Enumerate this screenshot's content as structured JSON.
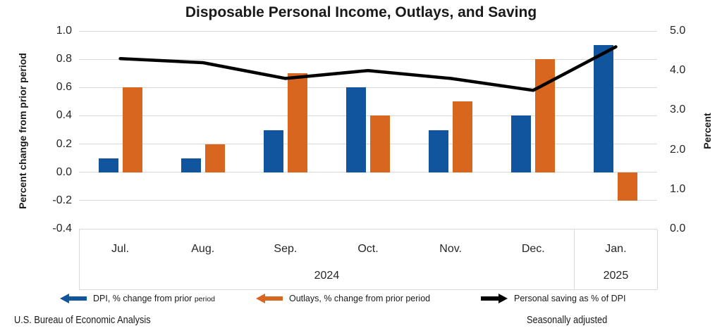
{
  "title": "Disposable Personal Income, Outlays, and Saving",
  "footer": {
    "left": "U.S. Bureau of Economic Analysis",
    "right": "Seasonally adjusted"
  },
  "legend": [
    {
      "label": "DPI, % change from prior",
      "label_small": "period",
      "icon": "left-arrow",
      "color": "#11559F"
    },
    {
      "label": "Outlays, % change from prior period",
      "label_small": "",
      "icon": "left-arrow",
      "color": "#D9661F"
    },
    {
      "label": "Personal saving as % of DPI",
      "label_small": "",
      "icon": "right-arrow",
      "color": "#000000"
    }
  ],
  "chart_data": {
    "type": "bar",
    "title": "Disposable Personal Income, Outlays, and Saving",
    "categories": [
      "Jul.",
      "Aug.",
      "Sep.",
      "Oct.",
      "Nov.",
      "Dec.",
      "Jan."
    ],
    "year_groups": [
      {
        "label": "2024",
        "start": 0,
        "count": 6
      },
      {
        "label": "2025",
        "start": 6,
        "count": 1
      }
    ],
    "series": [
      {
        "name": "DPI, % change from prior period",
        "type": "bar",
        "axis": "left",
        "color": "#11559F",
        "values": [
          0.1,
          0.1,
          0.3,
          0.6,
          0.3,
          0.4,
          0.9
        ]
      },
      {
        "name": "Outlays, % change from prior period",
        "type": "bar",
        "axis": "left",
        "color": "#D9661F",
        "values": [
          0.6,
          0.2,
          0.7,
          0.4,
          0.5,
          0.8,
          -0.2
        ]
      },
      {
        "name": "Personal saving as % of DPI",
        "type": "line",
        "axis": "right",
        "color": "#000000",
        "values": [
          4.3,
          4.2,
          3.8,
          4.0,
          3.8,
          3.5,
          4.6
        ]
      }
    ],
    "left_axis": {
      "label": "Percent change from prior period",
      "min": -0.4,
      "max": 1.0,
      "step": 0.2,
      "ticks": [
        "1.0",
        "0.8",
        "0.6",
        "0.4",
        "0.2",
        "0.0",
        "-0.2",
        "-0.4"
      ]
    },
    "right_axis": {
      "label": "Percent",
      "min": 0.0,
      "max": 5.0,
      "step": 1.0,
      "ticks": [
        "5.0",
        "4.0",
        "3.0",
        "2.0",
        "1.0",
        "0.0"
      ]
    },
    "grid": true,
    "legend_position": "bottom",
    "gridline_color": "#d9d9d9"
  }
}
